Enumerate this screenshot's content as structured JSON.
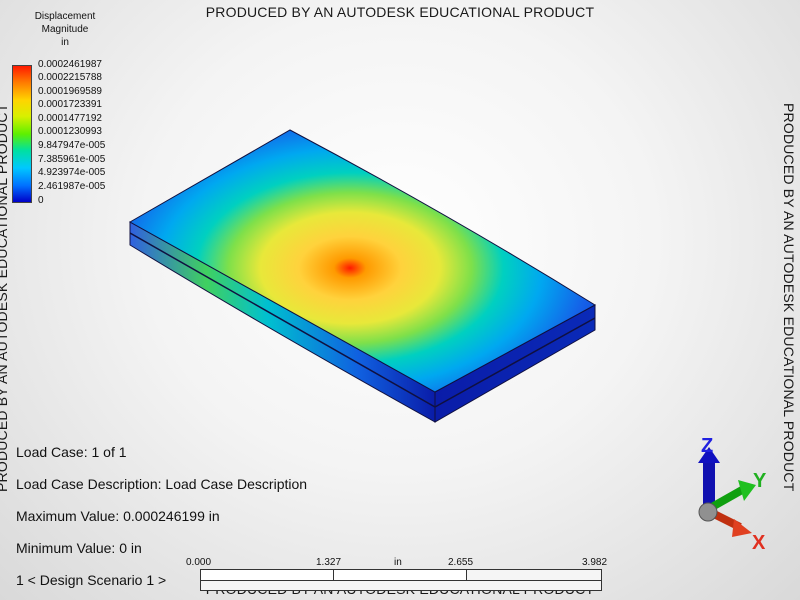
{
  "watermark": "PRODUCED BY AN AUTODESK EDUCATIONAL PRODUCT",
  "legend": {
    "title_line1": "Displacement",
    "title_line2": "Magnitude",
    "title_line3": "in",
    "labels": [
      "0.0002461987",
      "0.0002215788",
      "0.0001969589",
      "0.0001723391",
      "0.0001477192",
      "0.0001230993",
      "9.847947e-005",
      "7.385961e-005",
      "4.923974e-005",
      "2.461987e-005",
      "0"
    ],
    "colors": [
      "#ff1a00",
      "#ff7a00",
      "#ffd400",
      "#d8f000",
      "#5ef000",
      "#00e0a0",
      "#00c8ff",
      "#0070ff",
      "#0000c8"
    ]
  },
  "info": {
    "load_case": "Load Case:  1 of 1",
    "load_case_description": "Load Case Description:  Load Case Description",
    "maximum_value": "Maximum Value: 0.000246199 in",
    "minimum_value": "Minimum Value: 0 in",
    "design_scenario": "1 < Design Scenario 1 >"
  },
  "scale": {
    "ticks": [
      "0.000",
      "1.327",
      "in",
      "2.655",
      "3.982"
    ]
  },
  "triad": {
    "z": "Z",
    "y": "Y",
    "x": "X"
  }
}
